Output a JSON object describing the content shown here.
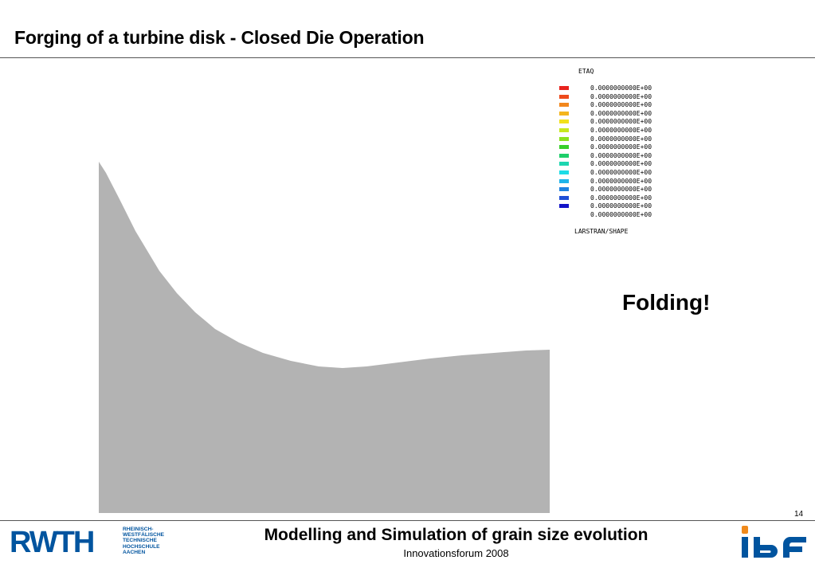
{
  "slide": {
    "title": "Forging of a turbine disk - Closed Die Operation",
    "page_number": "14"
  },
  "simulation": {
    "legend_title": "ETAQ",
    "software_label": "LARSTRAN/SHAPE",
    "annotation": "Folding!",
    "legend": [
      {
        "color": "#e8231e",
        "value": "0.0000000000E+00"
      },
      {
        "color": "#ee4a1c",
        "value": "0.0000000000E+00"
      },
      {
        "color": "#f2871c",
        "value": "0.0000000000E+00"
      },
      {
        "color": "#f4b51c",
        "value": "0.0000000000E+00"
      },
      {
        "color": "#f2e11c",
        "value": "0.0000000000E+00"
      },
      {
        "color": "#c8e81e",
        "value": "0.0000000000E+00"
      },
      {
        "color": "#8be21e",
        "value": "0.0000000000E+00"
      },
      {
        "color": "#38d02a",
        "value": "0.0000000000E+00"
      },
      {
        "color": "#1ecf6a",
        "value": "0.0000000000E+00"
      },
      {
        "color": "#1ed6b0",
        "value": "0.0000000000E+00"
      },
      {
        "color": "#1edce6",
        "value": "0.0000000000E+00"
      },
      {
        "color": "#1eb4ea",
        "value": "0.0000000000E+00"
      },
      {
        "color": "#1e82e0",
        "value": "0.0000000000E+00"
      },
      {
        "color": "#1e4ed6",
        "value": "0.0000000000E+00"
      },
      {
        "color": "#1414c8",
        "value": "0.0000000000E+00"
      },
      {
        "color": "",
        "value": "0.0000000000E+00"
      }
    ]
  },
  "footer": {
    "title": "Modelling and Simulation of grain size evolution",
    "subtitle": "Innovationsforum 2008",
    "university_logo": {
      "word": "RWTH",
      "lines": "RHEINISCH-\nWESTFÄLISCHE\nTECHNISCHE\nHOCHSCHULE\nAACHEN",
      "color": "#00549f"
    },
    "institute_logo": {
      "text": "ibf",
      "primary_color": "#00549f",
      "accent_color": "#f08a1c"
    }
  }
}
